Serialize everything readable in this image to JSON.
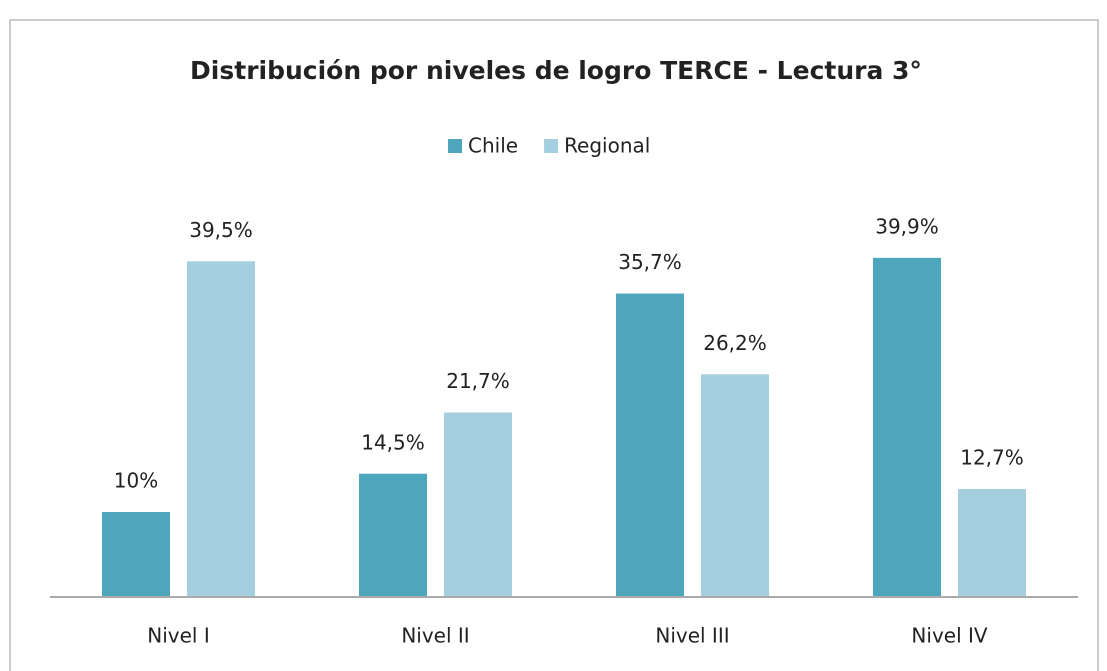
{
  "chart_data": {
    "type": "bar",
    "title": "Distribución por niveles de logro TERCE - Lectura 3°",
    "categories": [
      "Nivel I",
      "Nivel II",
      "Nivel III",
      "Nivel IV"
    ],
    "series": [
      {
        "name": "Chile",
        "color": "#4ea6bd",
        "values": [
          10,
          14.5,
          35.7,
          39.9
        ],
        "value_labels": [
          "10%",
          "14,5%",
          "35,7%",
          "39,9%"
        ]
      },
      {
        "name": "Regional",
        "color": "#a5cfdf",
        "values": [
          39.5,
          21.7,
          26.2,
          12.7
        ],
        "value_labels": [
          "39,5%",
          "21,7%",
          "26,2%",
          "12,7%"
        ]
      }
    ],
    "ylim": [
      0,
      45
    ],
    "legend": "top"
  }
}
